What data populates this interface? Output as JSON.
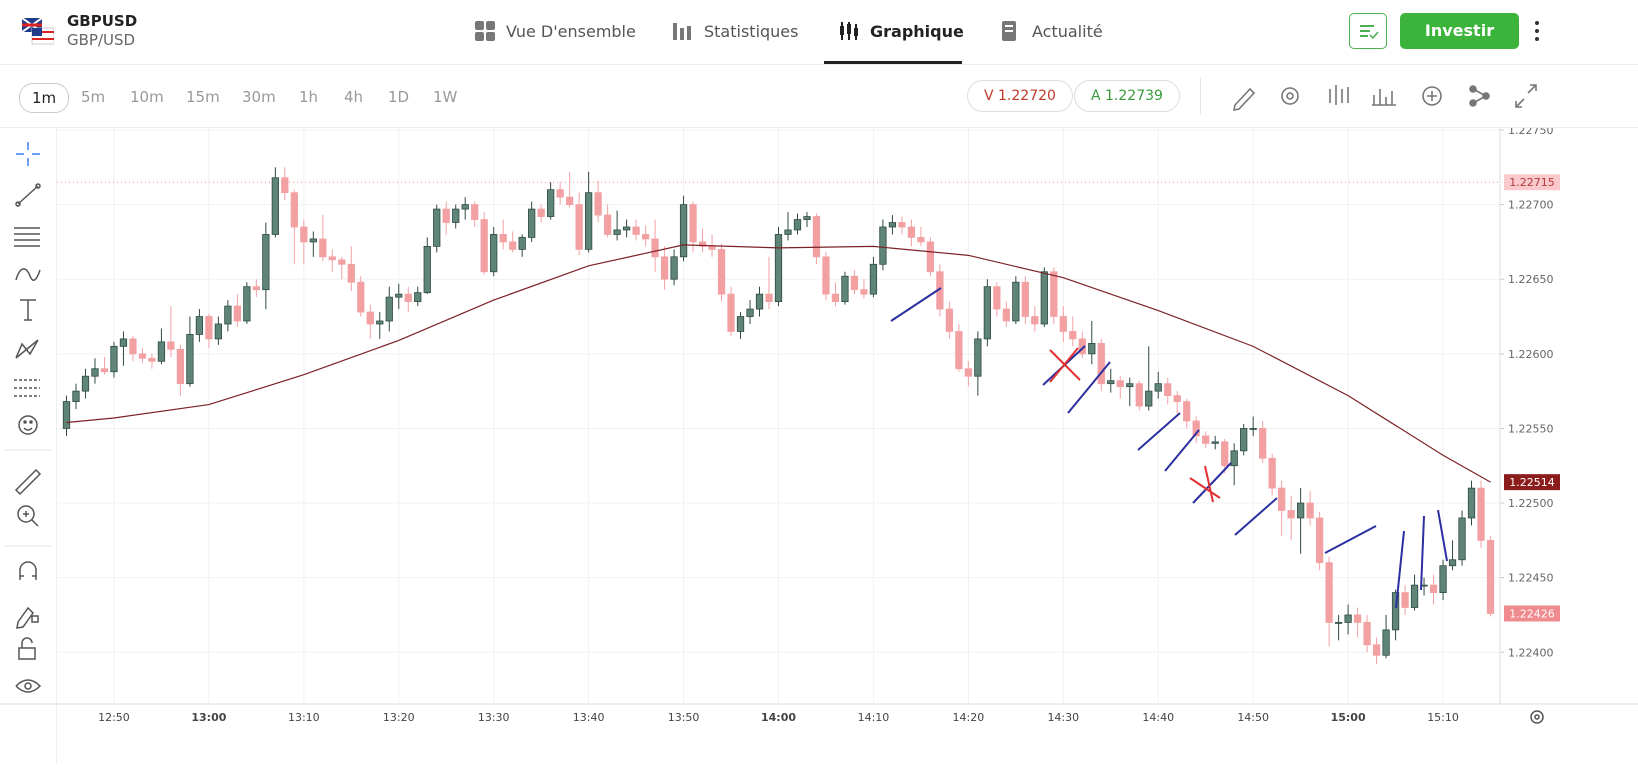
{
  "header": {
    "symbol": "GBPUSD",
    "pair": "GBP/USD",
    "tabs": [
      "Vue D'ensemble",
      "Statistiques",
      "Graphique",
      "Actualité"
    ],
    "active_tab": 2,
    "invest": "Investir"
  },
  "toolbar": {
    "timeframes": [
      "1m",
      "5m",
      "10m",
      "15m",
      "30m",
      "1h",
      "4h",
      "1D",
      "1W"
    ],
    "active_timeframe": 0,
    "sell": "V 1.22720",
    "buy": "A 1.22739"
  },
  "chart_data": {
    "type": "candlestick",
    "up_color": "#5f8579",
    "down_color": "#f3a0a3",
    "grid": true,
    "xlim": [
      "12:44",
      "15:16"
    ],
    "ylim": [
      1.22366,
      1.2275
    ],
    "yticks": [
      {
        "value": 1.2275,
        "label": "1.22750"
      },
      {
        "value": 1.227,
        "label": "1.22700"
      },
      {
        "value": 1.2265,
        "label": "1.22650"
      },
      {
        "value": 1.226,
        "label": "1.22600"
      },
      {
        "value": 1.2255,
        "label": "1.22550"
      },
      {
        "value": 1.225,
        "label": "1.22500"
      },
      {
        "value": 1.2245,
        "label": "1.22450"
      },
      {
        "value": 1.224,
        "label": "1.22400"
      }
    ],
    "xticks": [
      "12:50",
      "13:00",
      "13:10",
      "13:20",
      "13:30",
      "13:40",
      "13:50",
      "14:00",
      "14:10",
      "14:20",
      "14:30",
      "14:40",
      "14:50",
      "15:00",
      "15:10"
    ],
    "x": [
      "12:45",
      "12:46",
      "12:47",
      "12:48",
      "12:49",
      "12:50",
      "12:51",
      "12:52",
      "12:53",
      "12:54",
      "12:55",
      "12:56",
      "12:57",
      "12:58",
      "12:59",
      "13:00",
      "13:01",
      "13:02",
      "13:03",
      "13:04",
      "13:05",
      "13:06",
      "13:07",
      "13:08",
      "13:09",
      "13:10",
      "13:11",
      "13:12",
      "13:13",
      "13:14",
      "13:15",
      "13:16",
      "13:17",
      "13:18",
      "13:19",
      "13:20",
      "13:21",
      "13:22",
      "13:23",
      "13:24",
      "13:25",
      "13:26",
      "13:27",
      "13:28",
      "13:29",
      "13:30",
      "13:31",
      "13:32",
      "13:33",
      "13:34",
      "13:35",
      "13:36",
      "13:37",
      "13:38",
      "13:39",
      "13:40",
      "13:41",
      "13:42",
      "13:43",
      "13:44",
      "13:45",
      "13:46",
      "13:47",
      "13:48",
      "13:49",
      "13:50",
      "13:51",
      "13:52",
      "13:53",
      "13:54",
      "13:55",
      "13:56",
      "13:57",
      "13:58",
      "13:59",
      "14:00",
      "14:01",
      "14:02",
      "14:03",
      "14:04",
      "14:05",
      "14:06",
      "14:07",
      "14:08",
      "14:09",
      "14:10",
      "14:11",
      "14:12",
      "14:13",
      "14:14",
      "14:15",
      "14:16",
      "14:17",
      "14:18",
      "14:19",
      "14:20",
      "14:21",
      "14:22",
      "14:23",
      "14:24",
      "14:25",
      "14:26",
      "14:27",
      "14:28",
      "14:29",
      "14:30",
      "14:31",
      "14:32",
      "14:33",
      "14:34",
      "14:35",
      "14:36",
      "14:37",
      "14:38",
      "14:39",
      "14:40",
      "14:41",
      "14:42",
      "14:43",
      "14:44",
      "14:45",
      "14:46",
      "14:47",
      "14:48",
      "14:49",
      "14:50",
      "14:51",
      "14:52",
      "14:53",
      "14:54",
      "14:55",
      "14:56",
      "14:57",
      "14:58",
      "14:59",
      "15:00",
      "15:01",
      "15:02",
      "15:03",
      "15:04",
      "15:05",
      "15:06",
      "15:07",
      "15:08",
      "15:09",
      "15:10",
      "15:11",
      "15:12",
      "15:13",
      "15:14",
      "15:15"
    ],
    "candles": [
      [
        1.2255,
        1.22572,
        1.22545,
        1.22568
      ],
      [
        1.22568,
        1.2258,
        1.22563,
        1.22575
      ],
      [
        1.22575,
        1.2259,
        1.2257,
        1.22585
      ],
      [
        1.22585,
        1.22597,
        1.2258,
        1.2259
      ],
      [
        1.2259,
        1.22598,
        1.22586,
        1.22588
      ],
      [
        1.22588,
        1.22608,
        1.22584,
        1.22605
      ],
      [
        1.22605,
        1.22615,
        1.22592,
        1.2261
      ],
      [
        1.2261,
        1.22612,
        1.22595,
        1.226
      ],
      [
        1.226,
        1.22604,
        1.22594,
        1.22597
      ],
      [
        1.22597,
        1.226,
        1.2259,
        1.22595
      ],
      [
        1.22595,
        1.22617,
        1.22593,
        1.22608
      ],
      [
        1.22608,
        1.22632,
        1.22598,
        1.22603
      ],
      [
        1.22603,
        1.22606,
        1.22572,
        1.2258
      ],
      [
        1.2258,
        1.22625,
        1.22578,
        1.22613
      ],
      [
        1.22613,
        1.2263,
        1.22608,
        1.22625
      ],
      [
        1.22625,
        1.22627,
        1.22604,
        1.2261
      ],
      [
        1.2261,
        1.22625,
        1.22606,
        1.2262
      ],
      [
        1.2262,
        1.22636,
        1.22615,
        1.22632
      ],
      [
        1.22632,
        1.2264,
        1.22618,
        1.22622
      ],
      [
        1.22622,
        1.22648,
        1.2262,
        1.22645
      ],
      [
        1.22645,
        1.2265,
        1.22638,
        1.22643
      ],
      [
        1.22643,
        1.22688,
        1.2263,
        1.2268
      ],
      [
        1.2268,
        1.22725,
        1.22678,
        1.22718
      ],
      [
        1.22718,
        1.22725,
        1.22703,
        1.22708
      ],
      [
        1.22708,
        1.2271,
        1.2266,
        1.22685
      ],
      [
        1.22685,
        1.2269,
        1.2266,
        1.22675
      ],
      [
        1.22675,
        1.22682,
        1.22665,
        1.22677
      ],
      [
        1.22677,
        1.22693,
        1.22662,
        1.22665
      ],
      [
        1.22665,
        1.2267,
        1.22655,
        1.22663
      ],
      [
        1.22663,
        1.22665,
        1.2265,
        1.2266
      ],
      [
        1.2266,
        1.22672,
        1.22642,
        1.22648
      ],
      [
        1.22648,
        1.22652,
        1.22625,
        1.22628
      ],
      [
        1.22628,
        1.22633,
        1.2261,
        1.2262
      ],
      [
        1.2262,
        1.22628,
        1.2261,
        1.22622
      ],
      [
        1.22622,
        1.22645,
        1.22615,
        1.22638
      ],
      [
        1.22638,
        1.22647,
        1.2263,
        1.2264
      ],
      [
        1.2264,
        1.22645,
        1.22628,
        1.22635
      ],
      [
        1.22635,
        1.22645,
        1.22632,
        1.22641
      ],
      [
        1.22641,
        1.22678,
        1.2264,
        1.22672
      ],
      [
        1.22672,
        1.227,
        1.22668,
        1.22697
      ],
      [
        1.22697,
        1.22702,
        1.2268,
        1.22688
      ],
      [
        1.22688,
        1.227,
        1.22684,
        1.22697
      ],
      [
        1.22697,
        1.22705,
        1.2269,
        1.227
      ],
      [
        1.227,
        1.22702,
        1.22685,
        1.2269
      ],
      [
        1.2269,
        1.22695,
        1.22653,
        1.22655
      ],
      [
        1.22655,
        1.22685,
        1.22652,
        1.2268
      ],
      [
        1.2268,
        1.2269,
        1.2267,
        1.22675
      ],
      [
        1.22675,
        1.22682,
        1.22668,
        1.2267
      ],
      [
        1.2267,
        1.2268,
        1.22665,
        1.22678
      ],
      [
        1.22678,
        1.22702,
        1.22675,
        1.22697
      ],
      [
        1.22697,
        1.227,
        1.22688,
        1.22692
      ],
      [
        1.22692,
        1.22715,
        1.2269,
        1.2271
      ],
      [
        1.2271,
        1.22715,
        1.227,
        1.22705
      ],
      [
        1.22705,
        1.22722,
        1.22698,
        1.227
      ],
      [
        1.227,
        1.22708,
        1.22666,
        1.2267
      ],
      [
        1.2267,
        1.22722,
        1.22668,
        1.22708
      ],
      [
        1.22708,
        1.22716,
        1.22688,
        1.22693
      ],
      [
        1.22693,
        1.227,
        1.22678,
        1.2268
      ],
      [
        1.2268,
        1.22696,
        1.22676,
        1.22683
      ],
      [
        1.22683,
        1.2269,
        1.22678,
        1.22685
      ],
      [
        1.22685,
        1.2269,
        1.22676,
        1.2268
      ],
      [
        1.2268,
        1.22686,
        1.22672,
        1.22677
      ],
      [
        1.22677,
        1.2269,
        1.22655,
        1.22665
      ],
      [
        1.22665,
        1.22672,
        1.22643,
        1.2265
      ],
      [
        1.2265,
        1.2267,
        1.22646,
        1.22665
      ],
      [
        1.22665,
        1.22706,
        1.22662,
        1.227
      ],
      [
        1.227,
        1.22702,
        1.22668,
        1.22675
      ],
      [
        1.22675,
        1.22684,
        1.22668,
        1.22672
      ],
      [
        1.22672,
        1.2268,
        1.22665,
        1.2267
      ],
      [
        1.2267,
        1.22674,
        1.22635,
        1.2264
      ],
      [
        1.2264,
        1.22645,
        1.22612,
        1.22615
      ],
      [
        1.22615,
        1.22628,
        1.2261,
        1.22625
      ],
      [
        1.22625,
        1.22636,
        1.2262,
        1.2263
      ],
      [
        1.2263,
        1.22645,
        1.22625,
        1.2264
      ],
      [
        1.2264,
        1.22665,
        1.2263,
        1.22635
      ],
      [
        1.22635,
        1.22685,
        1.22632,
        1.2268
      ],
      [
        1.2268,
        1.22695,
        1.22676,
        1.22683
      ],
      [
        1.22683,
        1.22694,
        1.2268,
        1.2269
      ],
      [
        1.2269,
        1.22695,
        1.22685,
        1.22692
      ],
      [
        1.22692,
        1.22694,
        1.2266,
        1.22665
      ],
      [
        1.22665,
        1.22668,
        1.22636,
        1.2264
      ],
      [
        1.2264,
        1.22648,
        1.22632,
        1.22635
      ],
      [
        1.22635,
        1.22655,
        1.22633,
        1.22652
      ],
      [
        1.22652,
        1.22656,
        1.2264,
        1.22643
      ],
      [
        1.22643,
        1.2265,
        1.22637,
        1.2264
      ],
      [
        1.2264,
        1.22665,
        1.22638,
        1.2266
      ],
      [
        1.2266,
        1.2269,
        1.22656,
        1.22685
      ],
      [
        1.22685,
        1.22693,
        1.2268,
        1.22688
      ],
      [
        1.22688,
        1.22692,
        1.2268,
        1.22685
      ],
      [
        1.22685,
        1.2269,
        1.22672,
        1.22678
      ],
      [
        1.22678,
        1.22685,
        1.22672,
        1.22675
      ],
      [
        1.22675,
        1.22678,
        1.22652,
        1.22655
      ],
      [
        1.22655,
        1.2266,
        1.22625,
        1.2263
      ],
      [
        1.2263,
        1.22635,
        1.2261,
        1.22615
      ],
      [
        1.22615,
        1.2262,
        1.22588,
        1.2259
      ],
      [
        1.2259,
        1.22595,
        1.22578,
        1.22585
      ],
      [
        1.22585,
        1.22615,
        1.22572,
        1.2261
      ],
      [
        1.2261,
        1.2265,
        1.22605,
        1.22645
      ],
      [
        1.22645,
        1.22648,
        1.22625,
        1.2263
      ],
      [
        1.2263,
        1.22635,
        1.22618,
        1.22622
      ],
      [
        1.22622,
        1.22652,
        1.2262,
        1.22648
      ],
      [
        1.22648,
        1.22652,
        1.2262,
        1.22625
      ],
      [
        1.22625,
        1.22632,
        1.22615,
        1.2262
      ],
      [
        1.2262,
        1.22658,
        1.22618,
        1.22655
      ],
      [
        1.22655,
        1.22658,
        1.2262,
        1.22625
      ],
      [
        1.22625,
        1.22632,
        1.22608,
        1.22615
      ],
      [
        1.22615,
        1.22625,
        1.22605,
        1.2261
      ],
      [
        1.2261,
        1.22615,
        1.22597,
        1.226
      ],
      [
        1.226,
        1.22622,
        1.22593,
        1.22607
      ],
      [
        1.22607,
        1.2261,
        1.22575,
        1.2258
      ],
      [
        1.2258,
        1.2259,
        1.22574,
        1.22582
      ],
      [
        1.22582,
        1.22585,
        1.2257,
        1.22578
      ],
      [
        1.22578,
        1.22584,
        1.22565,
        1.2258
      ],
      [
        1.2258,
        1.22582,
        1.22562,
        1.22565
      ],
      [
        1.22565,
        1.22605,
        1.22562,
        1.22575
      ],
      [
        1.22575,
        1.22588,
        1.2257,
        1.2258
      ],
      [
        1.2258,
        1.22584,
        1.22566,
        1.22572
      ],
      [
        1.22572,
        1.22575,
        1.2256,
        1.22568
      ],
      [
        1.22568,
        1.2257,
        1.2255,
        1.22555
      ],
      [
        1.22555,
        1.22558,
        1.2254,
        1.22545
      ],
      [
        1.22545,
        1.22548,
        1.22537,
        1.2254
      ],
      [
        1.2254,
        1.22545,
        1.22536,
        1.22541
      ],
      [
        1.22541,
        1.22543,
        1.2252,
        1.22525
      ],
      [
        1.22525,
        1.2254,
        1.22512,
        1.22535
      ],
      [
        1.22535,
        1.22553,
        1.22532,
        1.2255
      ],
      [
        1.2255,
        1.22558,
        1.22545,
        1.2255
      ],
      [
        1.2255,
        1.22555,
        1.22527,
        1.2253
      ],
      [
        1.2253,
        1.22533,
        1.22505,
        1.2251
      ],
      [
        1.2251,
        1.22515,
        1.22478,
        1.22495
      ],
      [
        1.22495,
        1.22505,
        1.22475,
        1.2249
      ],
      [
        1.2249,
        1.2251,
        1.22466,
        1.225
      ],
      [
        1.225,
        1.22508,
        1.22485,
        1.2249
      ],
      [
        1.2249,
        1.22494,
        1.22455,
        1.2246
      ],
      [
        1.2246,
        1.22464,
        1.22404,
        1.2242
      ],
      [
        1.2242,
        1.22425,
        1.22408,
        1.2242
      ],
      [
        1.2242,
        1.22432,
        1.22412,
        1.22425
      ],
      [
        1.22425,
        1.2243,
        1.2241,
        1.2242
      ],
      [
        1.2242,
        1.22425,
        1.224,
        1.22405
      ],
      [
        1.22405,
        1.2241,
        1.22392,
        1.22398
      ],
      [
        1.22398,
        1.22425,
        1.22396,
        1.22415
      ],
      [
        1.22415,
        1.22442,
        1.22408,
        1.2244
      ],
      [
        1.2244,
        1.22445,
        1.22425,
        1.2243
      ],
      [
        1.2243,
        1.22452,
        1.22428,
        1.22445
      ],
      [
        1.22445,
        1.2245,
        1.22438,
        1.22445
      ],
      [
        1.22445,
        1.22452,
        1.22432,
        1.2244
      ],
      [
        1.2244,
        1.22462,
        1.22435,
        1.22458
      ],
      [
        1.22458,
        1.22475,
        1.22455,
        1.22462
      ],
      [
        1.22462,
        1.22495,
        1.22458,
        1.2249
      ],
      [
        1.2249,
        1.22515,
        1.22485,
        1.2251
      ],
      [
        1.2251,
        1.22515,
        1.2247,
        1.22475
      ],
      [
        1.22475,
        1.22478,
        1.22424,
        1.22426
      ]
    ],
    "ma": {
      "color": "#7b2226",
      "x": [
        "12:45",
        "12:50",
        "13:00",
        "13:10",
        "13:20",
        "13:30",
        "13:40",
        "13:50",
        "14:00",
        "14:10",
        "14:20",
        "14:30",
        "14:40",
        "14:50",
        "15:00",
        "15:10",
        "15:15"
      ],
      "values": [
        1.22554,
        1.22557,
        1.22566,
        1.22586,
        1.22609,
        1.22636,
        1.22659,
        1.22673,
        1.22671,
        1.22672,
        1.22666,
        1.22651,
        1.22629,
        1.22605,
        1.22572,
        1.22532,
        1.22514
      ]
    },
    "high_line": 1.22715,
    "ma_last": 1.22514,
    "last": 1.22426,
    "ma_label_color": "#8b1c1c",
    "last_label_color": "#ef8a8e"
  }
}
